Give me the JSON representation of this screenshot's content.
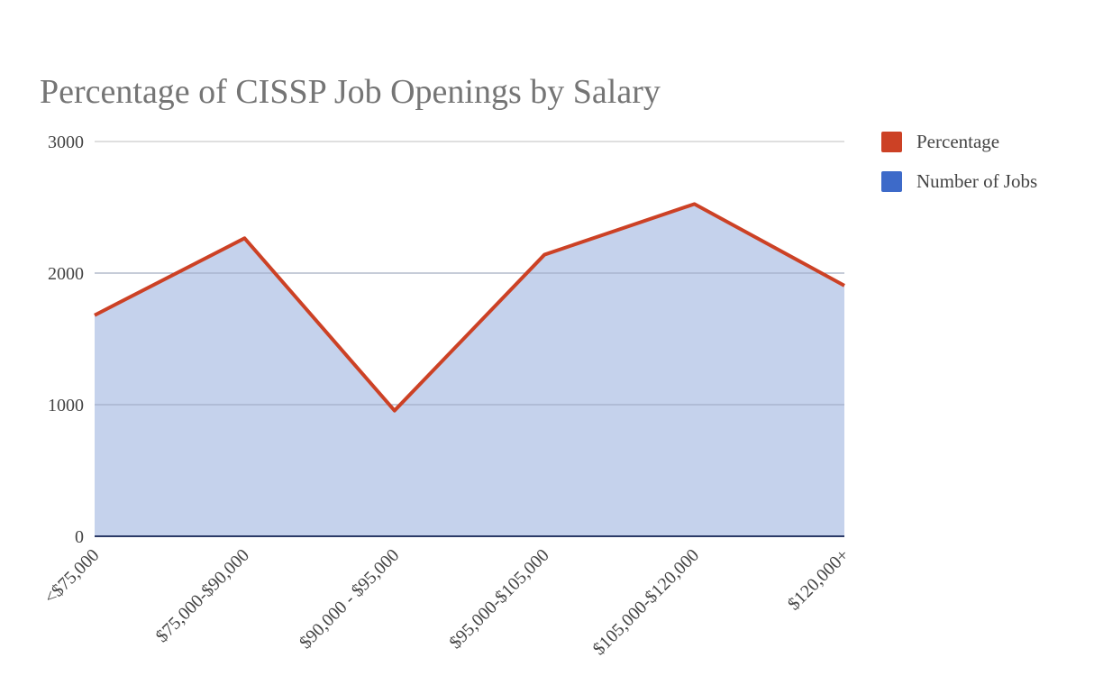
{
  "chart_data": {
    "type": "area",
    "title": "Percentage of CISSP Job Openings by Salary",
    "xlabel": "",
    "ylabel": "",
    "ylim": [
      0,
      3000
    ],
    "yticks": [
      0,
      1000,
      2000,
      3000
    ],
    "grid": true,
    "legend_position": "right",
    "categories": [
      "<$75,000",
      "$75,000-$90,000",
      "$90,000 - $95,000",
      "$95,000-$105,000",
      "$105,000-$120,000",
      "$120,000+"
    ],
    "series": [
      {
        "name": "Percentage",
        "color": "#cc4125",
        "mark": "line",
        "values": [
          0,
          0,
          0,
          0,
          0,
          0
        ]
      },
      {
        "name": "Number of Jobs",
        "color": "#3d6ac9",
        "fill": "#c5d2ec",
        "stroke": "#cc4125",
        "mark": "area",
        "values": [
          1680,
          2265,
          955,
          2140,
          2525,
          1905
        ]
      }
    ]
  }
}
